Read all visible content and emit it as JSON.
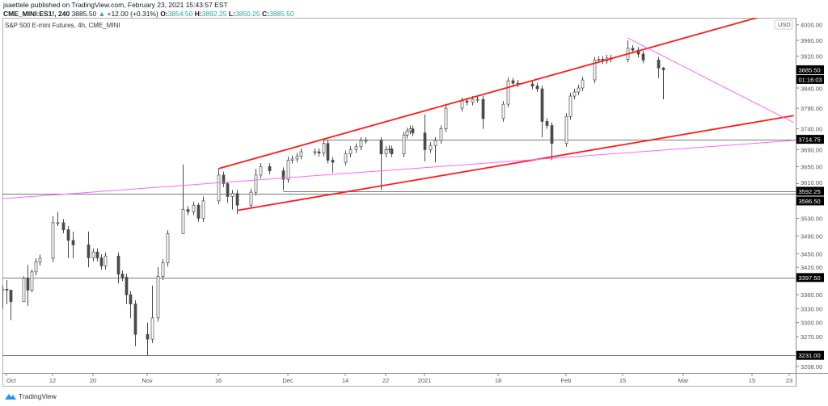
{
  "header": {
    "published": "jsaettele published on TradingView.com, February 23, 2021 15:43:57 EST",
    "symbol": "CME_MINI:ES1!, 240",
    "last": "3885.50",
    "change_arrow": "▲",
    "change": "+12.00 (+0.31%)",
    "o_label": "O:",
    "o": "3854.50",
    "h_label": "H:",
    "h": "3892.25",
    "l_label": "L:",
    "l": "3850.25",
    "c_label": "C:",
    "c": "3885.50"
  },
  "legend": "S&P 500 E-mini Futures, 4h, CME_MINI",
  "footer": {
    "logo_text": "TradingView",
    "logo_icon": "tradingview-logo-icon"
  },
  "colors": {
    "candle": "#4a4a4a",
    "channel": "#ff1a1a",
    "trendline": "#ff66ff",
    "level": "#7a7a7a",
    "label_bg": "#000000",
    "value_green": "#26a69a"
  },
  "chart_data": {
    "type": "candlestick",
    "scale": "log",
    "currency": "USD",
    "ylim": [
      3195,
      4030
    ],
    "xlim": [
      "2020-09-30",
      "2021-03-24"
    ],
    "y_ticks": [
      4000,
      3960,
      3920,
      3840,
      3790,
      3740,
      3690,
      3650,
      3610,
      3530,
      3490,
      3450,
      3420,
      3360,
      3330,
      3300,
      3270,
      3208
    ],
    "x_ticks": [
      {
        "label": "Oct",
        "date": "2020-10-01"
      },
      {
        "label": "12",
        "date": "2020-10-12"
      },
      {
        "label": "20",
        "date": "2020-10-20"
      },
      {
        "label": "Nov",
        "date": "2020-11-02"
      },
      {
        "label": "16",
        "date": "2020-11-16"
      },
      {
        "label": "Dec",
        "date": "2020-12-01"
      },
      {
        "label": "14",
        "date": "2020-12-14"
      },
      {
        "label": "22",
        "date": "2020-12-22"
      },
      {
        "label": "2021",
        "date": "2021-01-04"
      },
      {
        "label": "18",
        "date": "2021-01-18"
      },
      {
        "label": "Feb",
        "date": "2021-02-01"
      },
      {
        "label": "15",
        "date": "2021-02-15"
      },
      {
        "label": "Mar",
        "date": "2021-03-01"
      },
      {
        "label": "15",
        "date": "2021-03-15"
      },
      {
        "label": "23",
        "date": "2021-03-23"
      }
    ],
    "bars": [
      {
        "d": "2020-09-30",
        "c": 3372,
        "h": 3380,
        "l": 3330
      },
      {
        "d": "2020-10-01",
        "c": 3370,
        "h": 3392,
        "l": 3340
      },
      {
        "d": "2020-10-02",
        "c": 3345,
        "h": 3368,
        "l": 3305
      },
      {
        "d": "2020-10-05",
        "c": 3396,
        "h": 3400,
        "l": 3345
      },
      {
        "d": "2020-10-06",
        "c": 3370,
        "h": 3425,
        "l": 3336
      },
      {
        "d": "2020-10-07",
        "c": 3410,
        "h": 3415,
        "l": 3365
      },
      {
        "d": "2020-10-08",
        "c": 3432
      },
      {
        "d": "2020-10-09",
        "c": 3440
      },
      {
        "d": "2020-10-12",
        "c": 3520,
        "h": 3535
      },
      {
        "d": "2020-10-13",
        "c": 3520,
        "h": 3545
      },
      {
        "d": "2020-10-14",
        "c": 3504
      },
      {
        "d": "2020-10-15",
        "c": 3480,
        "l": 3440
      },
      {
        "d": "2020-10-16",
        "c": 3470,
        "h": 3500,
        "l": 3440
      },
      {
        "d": "2020-10-19",
        "c": 3441,
        "h": 3500,
        "l": 3420
      },
      {
        "d": "2020-10-20",
        "c": 3454
      },
      {
        "d": "2020-10-21",
        "c": 3441
      },
      {
        "d": "2020-10-22",
        "c": 3423
      },
      {
        "d": "2020-10-23",
        "c": 3445
      },
      {
        "d": "2020-10-26",
        "c": 3405,
        "l": 3385
      },
      {
        "d": "2020-10-27",
        "c": 3398
      },
      {
        "d": "2020-10-28",
        "c": 3360,
        "l": 3340
      },
      {
        "d": "2020-10-29",
        "c": 3340,
        "l": 3310
      },
      {
        "d": "2020-10-30",
        "c": 3275,
        "l": 3250
      },
      {
        "d": "2020-11-02",
        "c": 3265,
        "h": 3300,
        "l": 3230
      },
      {
        "d": "2020-11-03",
        "c": 3310,
        "h": 3380
      },
      {
        "d": "2020-11-04",
        "c": 3400,
        "h": 3420
      },
      {
        "d": "2020-11-05",
        "c": 3430
      },
      {
        "d": "2020-11-06",
        "c": 3495
      },
      {
        "d": "2020-11-09",
        "c": 3550,
        "h": 3655,
        "l": 3510
      },
      {
        "d": "2020-11-10",
        "c": 3545
      },
      {
        "d": "2020-11-11",
        "c": 3560
      },
      {
        "d": "2020-11-12",
        "c": 3530,
        "h": 3565
      },
      {
        "d": "2020-11-13",
        "c": 3570,
        "h": 3580
      },
      {
        "d": "2020-11-16",
        "c": 3630,
        "h": 3645
      },
      {
        "d": "2020-11-17",
        "c": 3610
      },
      {
        "d": "2020-11-18",
        "c": 3580,
        "h": 3615,
        "l": 3565
      },
      {
        "d": "2020-11-19",
        "c": 3587,
        "l": 3550
      },
      {
        "d": "2020-11-20",
        "c": 3560,
        "l": 3540
      },
      {
        "d": "2020-11-23",
        "c": 3590
      },
      {
        "d": "2020-11-24",
        "c": 3630,
        "h": 3645
      },
      {
        "d": "2020-11-25",
        "c": 3650
      },
      {
        "d": "2020-11-27",
        "c": 3640
      },
      {
        "d": "2020-11-30",
        "c": 3620,
        "l": 3595
      },
      {
        "d": "2020-12-01",
        "c": 3665
      },
      {
        "d": "2020-12-02",
        "c": 3668
      },
      {
        "d": "2020-12-03",
        "c": 3675
      },
      {
        "d": "2020-12-04",
        "c": 3685
      },
      {
        "d": "2020-12-07",
        "c": 3685
      },
      {
        "d": "2020-12-08",
        "c": 3682
      },
      {
        "d": "2020-12-09",
        "c": 3705,
        "h": 3714
      },
      {
        "d": "2020-12-10",
        "c": 3665
      },
      {
        "d": "2020-12-11",
        "c": 3660,
        "l": 3635
      },
      {
        "d": "2020-12-14",
        "c": 3680
      },
      {
        "d": "2020-12-15",
        "c": 3690
      },
      {
        "d": "2020-12-16",
        "c": 3697
      },
      {
        "d": "2020-12-17",
        "c": 3712,
        "h": 3720
      },
      {
        "d": "2020-12-18",
        "c": 3712
      },
      {
        "d": "2020-12-21",
        "c": 3680,
        "l": 3595
      },
      {
        "d": "2020-12-22",
        "c": 3690
      },
      {
        "d": "2020-12-23",
        "c": 3692
      },
      {
        "d": "2020-12-24",
        "c": 3680
      },
      {
        "d": "2020-12-28",
        "c": 3725
      },
      {
        "d": "2020-12-29",
        "c": 3735
      },
      {
        "d": "2020-12-30",
        "c": 3740
      },
      {
        "d": "2020-12-31",
        "c": 3730
      },
      {
        "d": "2021-01-04",
        "c": 3690,
        "h": 3775,
        "l": 3662
      },
      {
        "d": "2021-01-05",
        "c": 3700
      },
      {
        "d": "2021-01-06",
        "c": 3712,
        "l": 3660
      },
      {
        "d": "2021-01-07",
        "c": 3740
      },
      {
        "d": "2021-01-08",
        "c": 3790
      },
      {
        "d": "2021-01-11",
        "c": 3808
      },
      {
        "d": "2021-01-12",
        "c": 3805
      },
      {
        "d": "2021-01-13",
        "c": 3812
      },
      {
        "d": "2021-01-14",
        "c": 3812
      },
      {
        "d": "2021-01-15",
        "c": 3765,
        "l": 3740
      },
      {
        "d": "2021-01-19",
        "c": 3800
      },
      {
        "d": "2021-01-20",
        "c": 3858
      },
      {
        "d": "2021-01-21",
        "c": 3852,
        "h": 3865
      },
      {
        "d": "2021-01-22",
        "c": 3850
      },
      {
        "d": "2021-01-25",
        "c": 3845
      },
      {
        "d": "2021-01-26",
        "c": 3838
      },
      {
        "d": "2021-01-27",
        "c": 3758,
        "l": 3720
      },
      {
        "d": "2021-01-28",
        "c": 3748
      },
      {
        "d": "2021-01-29",
        "c": 3705,
        "l": 3665
      },
      {
        "d": "2021-02-01",
        "c": 3770
      },
      {
        "d": "2021-02-02",
        "c": 3820
      },
      {
        "d": "2021-02-03",
        "c": 3830
      },
      {
        "d": "2021-02-04",
        "c": 3840
      },
      {
        "d": "2021-02-05",
        "c": 3860
      },
      {
        "d": "2021-02-08",
        "c": 3910
      },
      {
        "d": "2021-02-09",
        "c": 3912
      },
      {
        "d": "2021-02-10",
        "c": 3908
      },
      {
        "d": "2021-02-11",
        "c": 3915
      },
      {
        "d": "2021-02-12",
        "c": 3912
      },
      {
        "d": "2021-02-16",
        "c": 3940,
        "h": 3960
      },
      {
        "d": "2021-02-17",
        "c": 3935
      },
      {
        "d": "2021-02-18",
        "c": 3925
      },
      {
        "d": "2021-02-19",
        "c": 3910
      },
      {
        "d": "2021-02-22",
        "c": 3890,
        "l": 3865
      },
      {
        "d": "2021-02-23",
        "c": 3885.5,
        "h": 3892.25,
        "l": 3812
      }
    ],
    "drawings": {
      "channel_lines": [
        {
          "from": [
            "2020-11-16",
            3645
          ],
          "to": [
            "2021-03-18",
            4025
          ]
        },
        {
          "from": [
            "2020-11-20",
            3548
          ],
          "to": [
            "2021-03-24",
            3772
          ]
        }
      ],
      "trend_lines": [
        {
          "from": [
            "2020-09-30",
            3575
          ],
          "to": [
            "2021-03-24",
            3712
          ]
        },
        {
          "from": [
            "2021-02-16",
            3966
          ],
          "to": [
            "2021-03-24",
            3755
          ]
        }
      ],
      "horizontal_levels": [
        {
          "price": 3714.75,
          "label": "3714.75",
          "from": "2020-12-09"
        },
        {
          "price": 3592.25,
          "label": "3592.25",
          "from": "2020-11-30"
        },
        {
          "price": 3586.5,
          "label": "3586.50",
          "from": "2020-09-30"
        },
        {
          "price": 3397.5,
          "label": "3397.50",
          "from": "2020-09-30"
        },
        {
          "price": 3231.0,
          "label": "3231.00",
          "from": "2020-09-30"
        }
      ]
    },
    "last_price_label": "3885.50",
    "countdown_label": "01:16:03",
    "currency_label": "USD"
  }
}
